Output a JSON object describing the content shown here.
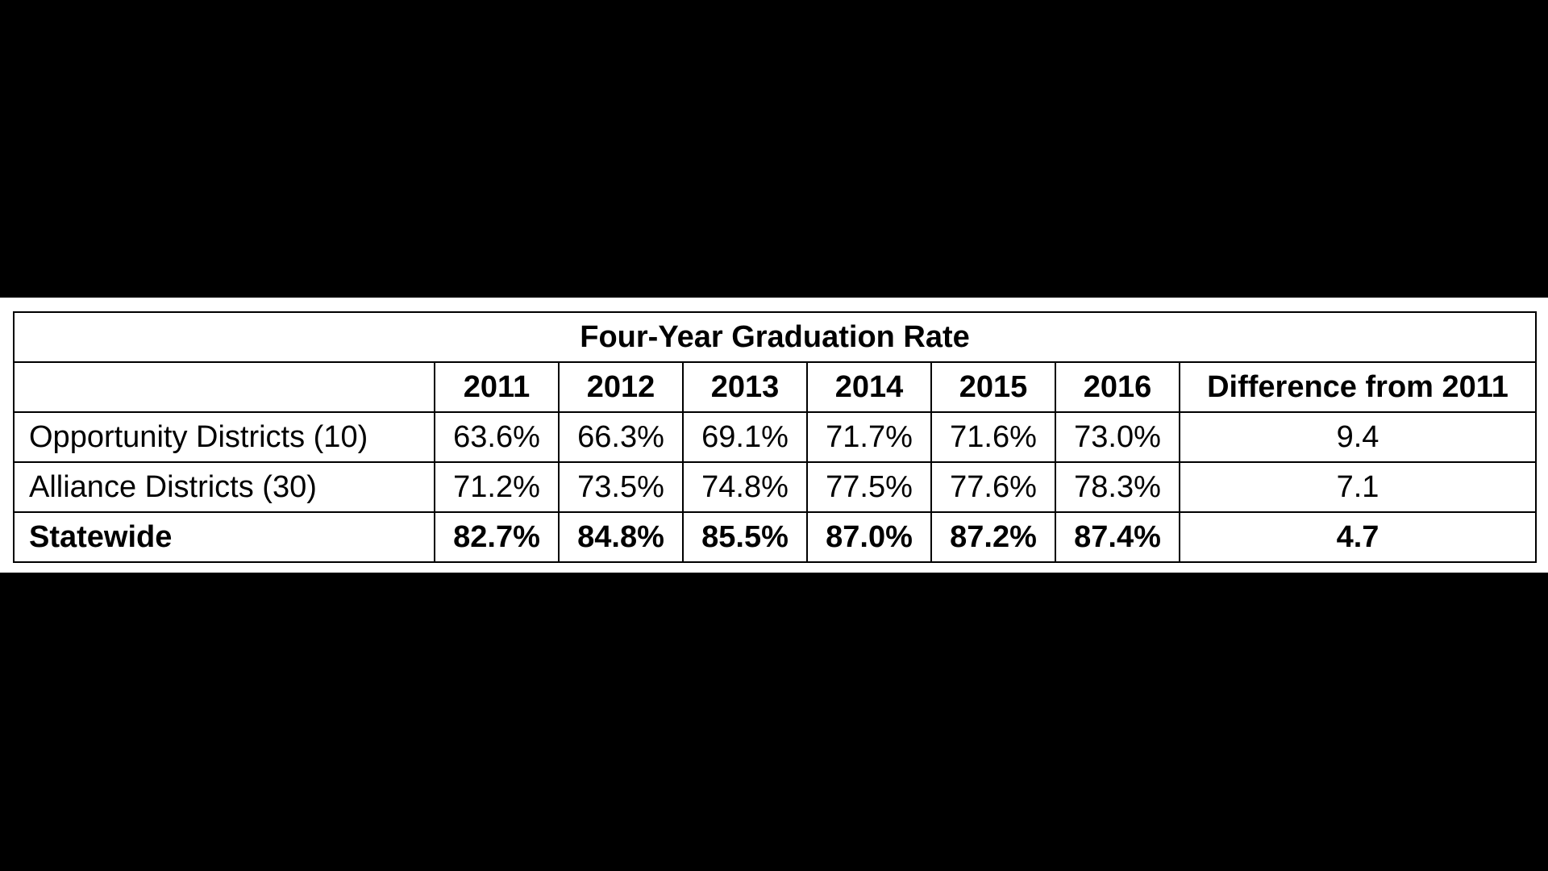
{
  "chart_data": {
    "type": "table",
    "title": "Four-Year Graduation Rate",
    "columns": [
      "2011",
      "2012",
      "2013",
      "2014",
      "2015",
      "2016"
    ],
    "difference_header": "Difference from 2011",
    "rows": [
      {
        "label": "Opportunity Districts (10)",
        "values": [
          "63.6%",
          "66.3%",
          "69.1%",
          "71.7%",
          "71.6%",
          "73.0%"
        ],
        "difference": "9.4"
      },
      {
        "label": "Alliance Districts (30)",
        "values": [
          "71.2%",
          "73.5%",
          "74.8%",
          "77.5%",
          "77.6%",
          "78.3%"
        ],
        "difference": "7.1"
      },
      {
        "label": "Statewide",
        "values": [
          "82.7%",
          "84.8%",
          "85.5%",
          "87.0%",
          "87.2%",
          "87.4%"
        ],
        "difference": "4.7",
        "bold": true
      }
    ]
  },
  "colors": {
    "background": "#000000",
    "table_background": "#ffffff",
    "text": "#000000",
    "border": "#000000"
  }
}
